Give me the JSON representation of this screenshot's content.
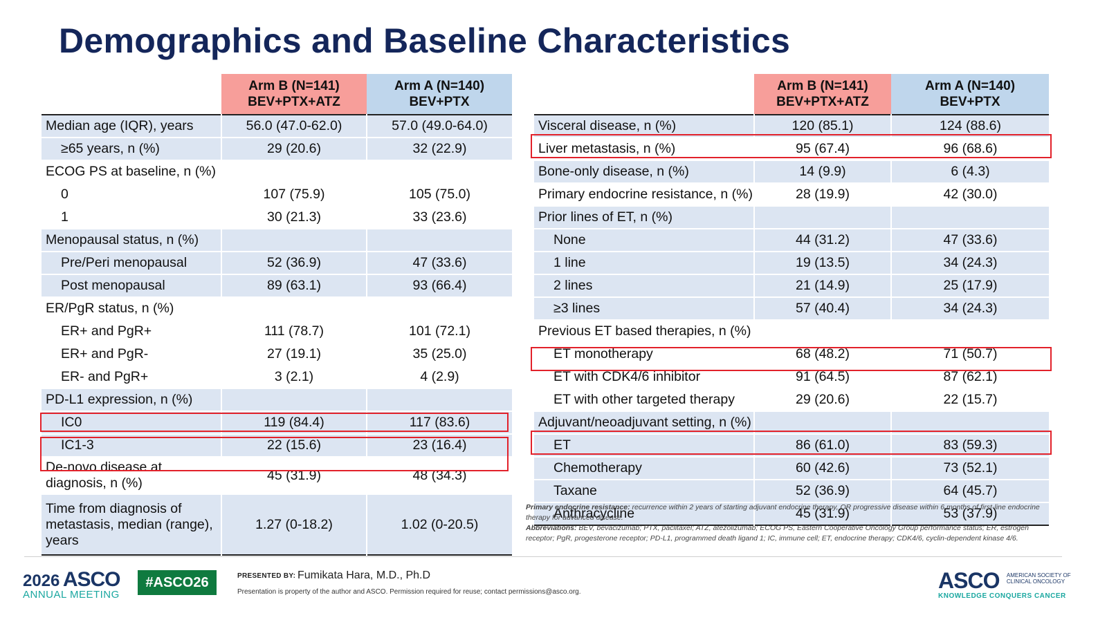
{
  "title": "Demographics and Baseline Characteristics",
  "header": {
    "armb_line1": "Arm B (N=141)",
    "armb_line2": "BEV+PTX+ATZ",
    "arma_line1": "Arm A (N=140)",
    "arma_line2": "BEV+PTX"
  },
  "left_rows": [
    {
      "label": "Median age (IQR), years",
      "b": "56.0 (47.0-62.0)",
      "a": "57.0 (49.0-64.0)"
    },
    {
      "label": "≥65 years, n (%)",
      "b": "29 (20.6)",
      "a": "32 (22.9)"
    },
    {
      "label": "ECOG PS at baseline, n (%)",
      "b": "",
      "a": ""
    },
    {
      "label": "0",
      "b": "107 (75.9)",
      "a": "105 (75.0)"
    },
    {
      "label": "1",
      "b": "30 (21.3)",
      "a": "33 (23.6)"
    },
    {
      "label": "Menopausal status, n (%)",
      "b": "",
      "a": ""
    },
    {
      "label": "Pre/Peri menopausal",
      "b": "52 (36.9)",
      "a": "47 (33.6)"
    },
    {
      "label": "Post menopausal",
      "b": "89 (63.1)",
      "a": "93 (66.4)"
    },
    {
      "label": "ER/PgR status, n (%)",
      "b": "",
      "a": ""
    },
    {
      "label": "ER+ and PgR+",
      "b": "111 (78.7)",
      "a": "101 (72.1)"
    },
    {
      "label": "ER+ and PgR-",
      "b": "27 (19.1)",
      "a": "35 (25.0)"
    },
    {
      "label": "ER- and PgR+",
      "b": "3 (2.1)",
      "a": "4 (2.9)"
    },
    {
      "label": "PD-L1 expression, n (%)",
      "b": "",
      "a": ""
    },
    {
      "label": "IC0",
      "b": "119 (84.4)",
      "a": "117 (83.6)"
    },
    {
      "label": "IC1-3",
      "b": "22 (15.6)",
      "a": "23 (16.4)"
    },
    {
      "label": "De-novo disease at diagnosis, n (%)",
      "b": "45 (31.9)",
      "a": "48 (34.3)"
    },
    {
      "label": "Time from diagnosis of metastasis, median (range), years",
      "b": "1.27 (0-18.2)",
      "a": "1.02 (0-20.5)"
    }
  ],
  "right_rows": [
    {
      "label": "Visceral disease, n (%)",
      "b": "120 (85.1)",
      "a": "124 (88.6)"
    },
    {
      "label": "Liver metastasis, n (%)",
      "b": "95 (67.4)",
      "a": "96 (68.6)"
    },
    {
      "label": "Bone-only disease, n (%)",
      "b": "14 (9.9)",
      "a": "6 (4.3)"
    },
    {
      "label": "Primary endocrine resistance, n (%)",
      "b": "28 (19.9)",
      "a": "42 (30.0)"
    },
    {
      "label": "Prior lines of ET, n (%)",
      "b": "",
      "a": ""
    },
    {
      "label": "None",
      "b": "44 (31.2)",
      "a": "47 (33.6)"
    },
    {
      "label": "1 line",
      "b": "19 (13.5)",
      "a": "34 (24.3)"
    },
    {
      "label": "2 lines",
      "b": "21 (14.9)",
      "a": "25 (17.9)"
    },
    {
      "label": "≥3 lines",
      "b": "57 (40.4)",
      "a": "34 (24.3)"
    },
    {
      "label": "Previous ET based therapies, n (%)",
      "b": "",
      "a": ""
    },
    {
      "label": "ET monotherapy",
      "b": "68 (48.2)",
      "a": "71 (50.7)"
    },
    {
      "label": "ET with CDK4/6 inhibitor",
      "b": "91 (64.5)",
      "a": "87 (62.1)"
    },
    {
      "label": "ET with other targeted therapy",
      "b": "29 (20.6)",
      "a": "22 (15.7)"
    },
    {
      "label": "Adjuvant/neoadjuvant setting, n (%)",
      "b": "",
      "a": ""
    },
    {
      "label": "ET",
      "b": "86 (61.0)",
      "a": "83 (59.3)"
    },
    {
      "label": "Chemotherapy",
      "b": "60 (42.6)",
      "a": "73 (52.1)"
    },
    {
      "label": "Taxane",
      "b": "52 (36.9)",
      "a": "64 (45.7)"
    },
    {
      "label": "Anthracycline",
      "b": "45 (31.9)",
      "a": "53 (37.9)"
    }
  ],
  "footnote": {
    "pe_label": "Primary endocrine resistance:",
    "pe_text": " recurrence within 2 years of starting adjuvant endocrine therapy, OR progressive disease within 6 months of first-line endocrine therapy for advanced disease.",
    "abbr_label": "Abbreviations:",
    "abbr_text": " BEV, bevacizumab; PTX, paclitaxel; ATZ, atezolizumab; ECOG PS, Eastern Cooperative Oncology Group performance status; ER, estrogen receptor; PgR, progesterone receptor; PD-L1, programmed death ligand 1; IC, immune cell; ET, endocrine therapy; CDK4/6, cyclin-dependent kinase 4/6."
  },
  "footer": {
    "meeting_year": "2026",
    "meeting_brand": "ASCO",
    "meeting_name": "ANNUAL MEETING",
    "hashtag": "#ASCO26",
    "presented_by": "PRESENTED BY:",
    "presenter": "Fumikata Hara, M.D., Ph.D",
    "property_notice": "Presentation is property of the author and ASCO. Permission required for reuse; contact permissions@asco.org.",
    "logo_brand": "ASCO",
    "society_line1": "AMERICAN SOCIETY OF",
    "society_line2": "CLINICAL ONCOLOGY",
    "tagline": "KNOWLEDGE CONQUERS CANCER"
  }
}
